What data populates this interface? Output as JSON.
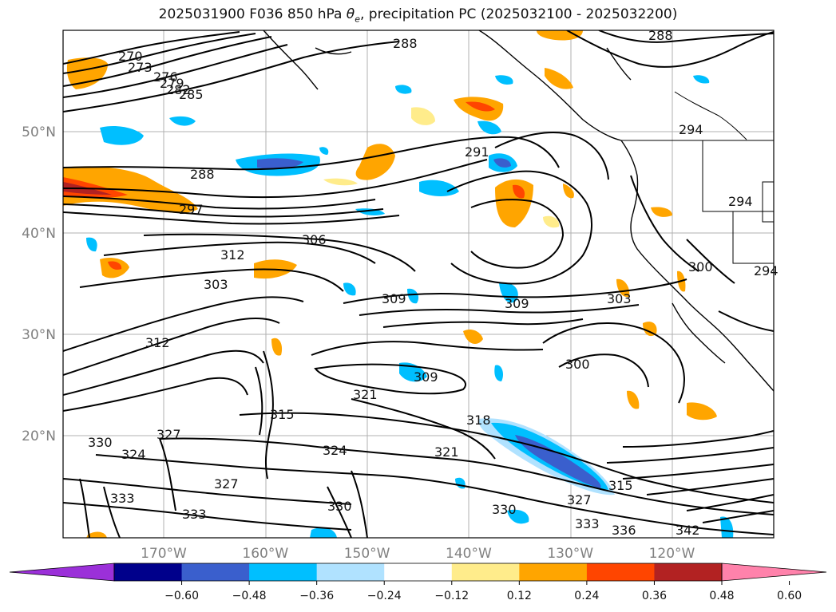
{
  "title_prefix": "2025031900 F036 850 hPa ",
  "title_symbol": "θ",
  "title_subscript": "e",
  "title_suffix": ", precipitation PC (2025032100 - 2025032200)",
  "map": {
    "lat_labels": [
      {
        "text": "50°N",
        "lat": 50
      },
      {
        "text": "40°N",
        "lat": 40
      },
      {
        "text": "30°N",
        "lat": 30
      },
      {
        "text": "20°N",
        "lat": 20
      }
    ],
    "lon_labels": [
      {
        "text": "170°W",
        "lon": -170
      },
      {
        "text": "160°W",
        "lon": -160
      },
      {
        "text": "150°W",
        "lon": -150
      },
      {
        "text": "140°W",
        "lon": -140
      },
      {
        "text": "130°W",
        "lon": -130
      },
      {
        "text": "120°W",
        "lon": -120
      }
    ],
    "contour_labels": [
      "270",
      "273",
      "276",
      "279",
      "282",
      "285",
      "288",
      "288",
      "288",
      "291",
      "294",
      "294",
      "294",
      "297",
      "300",
      "300",
      "303",
      "303",
      "306",
      "309",
      "309",
      "309",
      "312",
      "312",
      "315",
      "315",
      "318",
      "321",
      "321",
      "324",
      "324",
      "327",
      "327",
      "327",
      "330",
      "330",
      "330",
      "333",
      "333",
      "333",
      "336",
      "342"
    ]
  },
  "colorbar": {
    "ticks": [
      "−0.60",
      "−0.48",
      "−0.36",
      "−0.24",
      "−0.12",
      "0.12",
      "0.24",
      "0.36",
      "0.48",
      "0.60"
    ],
    "colors": [
      "#9b30d9",
      "#00008b",
      "#3a5fcd",
      "#00bfff",
      "#b0e2ff",
      "#ffffff",
      "#ffec8b",
      "#ffa500",
      "#ff4500",
      "#b22222",
      "#ff82ab"
    ]
  }
}
